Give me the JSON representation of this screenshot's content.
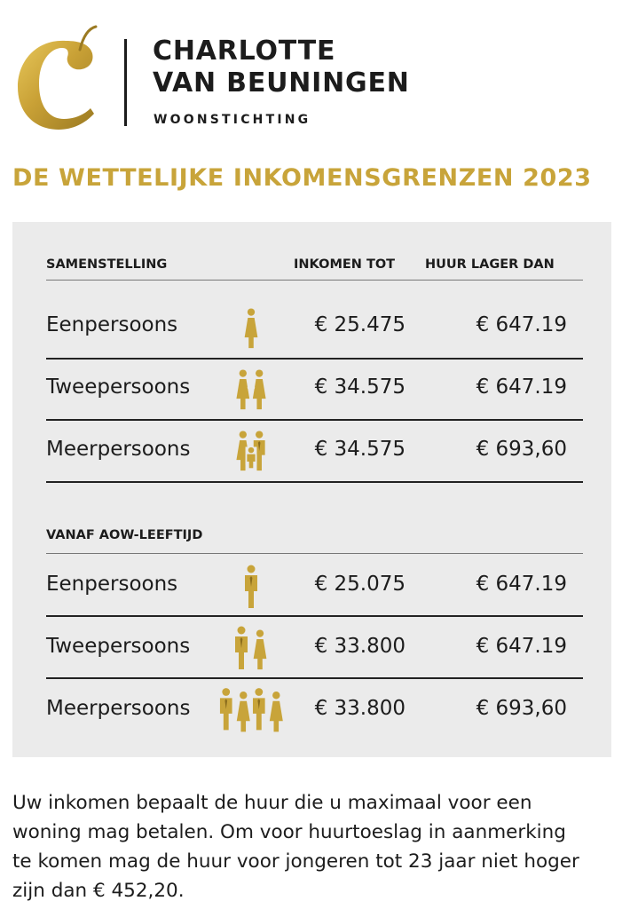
{
  "brand": {
    "name_line1": "CHARLOTTE",
    "name_line2": "VAN BEUNINGEN",
    "subtitle": "WOONSTICHTING",
    "logo_color": "#c8a43a"
  },
  "title": "DE WETTELIJKE INKOMENSGRENZEN 2023",
  "table": {
    "headers": {
      "composition": "SAMENSTELLING",
      "income": "INKOMEN TOT",
      "rent": "HUUR LAGER DAN"
    },
    "standard_rows": [
      {
        "label": "Eenpersoons",
        "icon": "single-person-icon",
        "income": "€ 25.475",
        "rent": "€ 647.19"
      },
      {
        "label": "Tweepersoons",
        "icon": "couple-icon",
        "income": "€ 34.575",
        "rent": "€ 647.19"
      },
      {
        "label": "Meerpersoons",
        "icon": "family-icon",
        "income": "€ 34.575",
        "rent": "€ 693,60"
      }
    ],
    "aow_header": "VANAF AOW-LEEFTIJD",
    "aow_rows": [
      {
        "label": "Eenpersoons",
        "icon": "single-person-icon",
        "income": "€ 25.075",
        "rent": "€ 647.19"
      },
      {
        "label": "Tweepersoons",
        "icon": "couple-icon",
        "income": "€ 33.800",
        "rent": "€ 647.19"
      },
      {
        "label": "Meerpersoons",
        "icon": "group-icon",
        "income": "€ 33.800",
        "rent": "€ 693,60"
      }
    ]
  },
  "footer": "Uw inkomen bepaalt de huur die u maximaal voor een woning mag betalen. Om voor huurtoeslag in aanmerking te komen mag de huur voor jongeren tot 23 jaar niet hoger zijn dan € 452,20.",
  "colors": {
    "gold": "#c8a43a",
    "panel": "#ebebeb",
    "text": "#1c1c1c"
  }
}
